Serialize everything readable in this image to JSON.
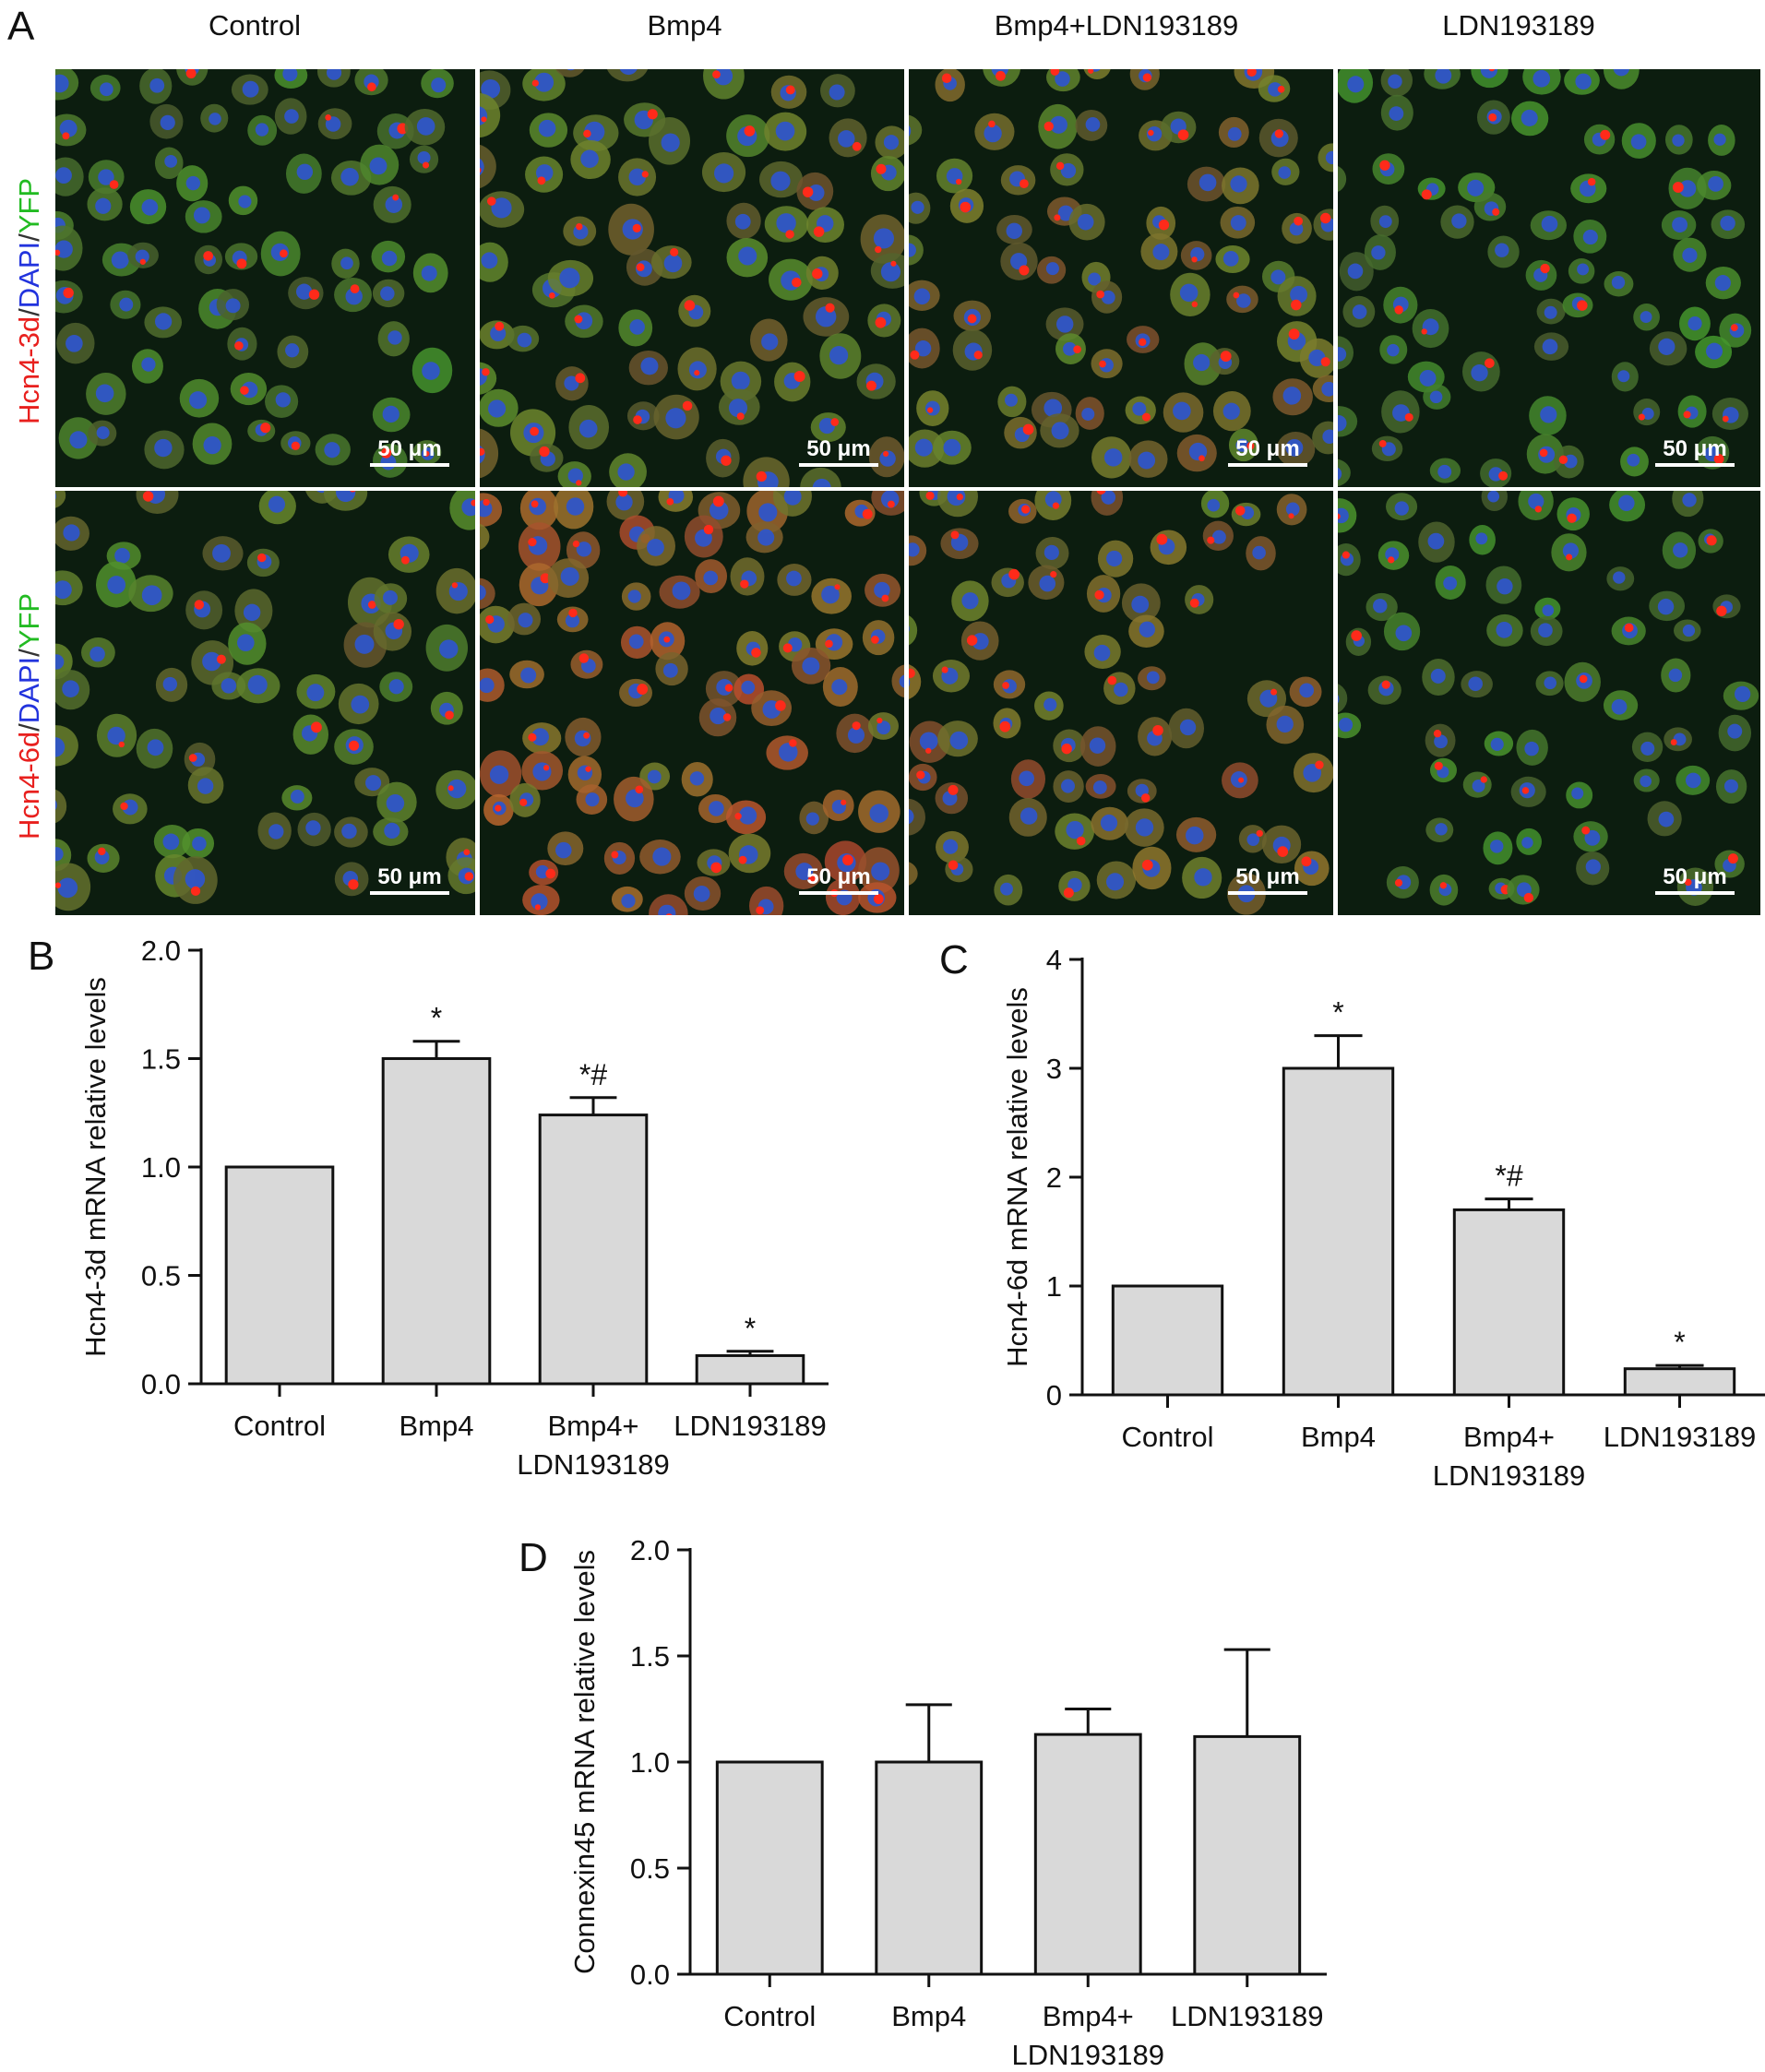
{
  "figure": {
    "panel_labels": {
      "a": "A",
      "b": "B",
      "c": "C",
      "d": "D"
    },
    "panel_a": {
      "column_titles": [
        "Control",
        "Bmp4",
        "Bmp4+LDN193189",
        "LDN193189"
      ],
      "row_labels": [
        {
          "parts": [
            "Hcn4-3d",
            "/",
            "DAPI",
            "/",
            "YFP"
          ]
        },
        {
          "parts": [
            "Hcn4-6d",
            "/",
            "DAPI",
            "/",
            "YFP"
          ]
        }
      ],
      "scale_bar_label": "50 μm",
      "stain_colors": {
        "hcn4": "#e8201e",
        "dapi": "#2233dd",
        "yfp": "#22bb22",
        "slash": "#333333"
      },
      "tiles": [
        {
          "name": "hcn4-3d-control",
          "density": 0.55,
          "red": 0.15,
          "size": 1.0
        },
        {
          "name": "hcn4-3d-bmp4",
          "density": 0.45,
          "red": 0.35,
          "size": 1.15
        },
        {
          "name": "hcn4-3d-bmp4-ldn",
          "density": 0.55,
          "red": 0.45,
          "size": 1.0
        },
        {
          "name": "hcn4-3d-ldn",
          "density": 0.5,
          "red": 0.1,
          "size": 0.95
        },
        {
          "name": "hcn4-6d-control",
          "density": 0.45,
          "red": 0.3,
          "size": 1.1
        },
        {
          "name": "hcn4-6d-bmp4",
          "density": 0.6,
          "red": 0.8,
          "size": 1.05
        },
        {
          "name": "hcn4-6d-bmp4-ldn",
          "density": 0.5,
          "red": 0.55,
          "size": 1.0
        },
        {
          "name": "hcn4-6d-ldn",
          "density": 0.5,
          "red": 0.12,
          "size": 0.9
        }
      ]
    }
  },
  "chart_data": [
    {
      "id": "B",
      "type": "bar",
      "ylabel": "Hcn4-3d mRNA relative levels",
      "ylim": [
        0,
        2.0
      ],
      "yticks": [
        "0.0",
        "0.5",
        "1.0",
        "1.5",
        "2.0"
      ],
      "categories": [
        [
          "Control"
        ],
        [
          "Bmp4"
        ],
        [
          "Bmp4+",
          "LDN193189"
        ],
        [
          "LDN193189"
        ]
      ],
      "values": [
        1.0,
        1.5,
        1.24,
        0.13
      ],
      "errors": [
        0,
        0.08,
        0.08,
        0.02
      ],
      "annotations": [
        "",
        "*",
        "*#",
        "*"
      ],
      "bar_color": "#d9d9d9"
    },
    {
      "id": "C",
      "type": "bar",
      "ylabel": "Hcn4-6d mRNA relative levels",
      "ylim": [
        0,
        4
      ],
      "yticks": [
        "0",
        "1",
        "2",
        "3",
        "4"
      ],
      "categories": [
        [
          "Control"
        ],
        [
          "Bmp4"
        ],
        [
          "Bmp4+",
          "LDN193189"
        ],
        [
          "LDN193189"
        ]
      ],
      "values": [
        1.0,
        3.0,
        1.7,
        0.24
      ],
      "errors": [
        0,
        0.3,
        0.1,
        0.03
      ],
      "annotations": [
        "",
        "*",
        "*#",
        "*"
      ],
      "bar_color": "#d9d9d9"
    },
    {
      "id": "D",
      "type": "bar",
      "ylabel": "Connexin45 mRNA relative levels",
      "ylim": [
        0,
        2.0
      ],
      "yticks": [
        "0.0",
        "0.5",
        "1.0",
        "1.5",
        "2.0"
      ],
      "categories": [
        [
          "Control"
        ],
        [
          "Bmp4"
        ],
        [
          "Bmp4+",
          "LDN193189"
        ],
        [
          "LDN193189"
        ]
      ],
      "values": [
        1.0,
        1.0,
        1.13,
        1.12
      ],
      "errors": [
        0,
        0.27,
        0.12,
        0.41
      ],
      "annotations": [
        "",
        "",
        "",
        ""
      ],
      "bar_color": "#d9d9d9"
    }
  ]
}
